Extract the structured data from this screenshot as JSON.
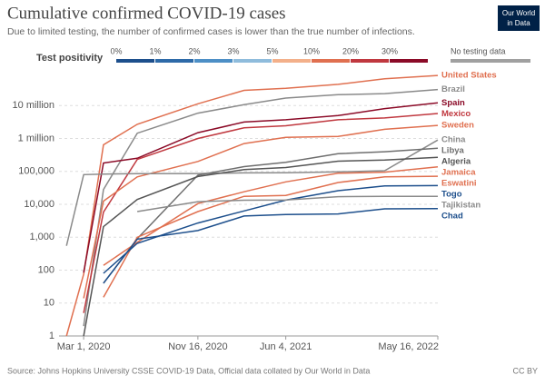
{
  "chart_data": {
    "type": "line",
    "title": "Cumulative confirmed COVID-19 cases",
    "subtitle": "Due to limited testing, the number of confirmed cases is lower than the true number of infections.",
    "logo": [
      "Our World",
      "in Data"
    ],
    "source": "Source: Johns Hopkins University CSSE COVID-19 Data, Official data collated by Our World in Data",
    "license": "CC BY",
    "legend": {
      "title": "Test positivity",
      "labels": [
        "0%",
        "1%",
        "2%",
        "3%",
        "5%",
        "10%",
        "20%",
        "30%"
      ],
      "colors": [
        "#1d4f8c",
        "#2d6aa8",
        "#4d8fc6",
        "#8fbcdc",
        "#f3b08a",
        "#e07050",
        "#c0383f",
        "#8b0a27"
      ],
      "no_data_label": "No testing data",
      "no_data_color": "#a0a0a0"
    },
    "log_scale": true,
    "grid": true,
    "x": [
      "2020-01-22",
      "2020-03-01",
      "2020-04-15",
      "2020-07-01",
      "2020-11-16",
      "2021-03-01",
      "2021-06-04",
      "2021-10-01",
      "2022-01-15",
      "2022-05-16"
    ],
    "xlim": [
      "2020-01-05",
      "2022-05-16"
    ],
    "xticks": [
      {
        "value": "2020-03-01",
        "label": "Mar 1, 2020"
      },
      {
        "value": "2020-11-16",
        "label": "Nov 16, 2020"
      },
      {
        "value": "2021-06-04",
        "label": "Jun 4, 2021"
      },
      {
        "value": "2022-05-16",
        "label": "May 16, 2022"
      }
    ],
    "ylim": [
      1,
      100000000
    ],
    "yticks": [
      1,
      10,
      100,
      {
        "value": 1000,
        "label": "1,000"
      },
      {
        "value": 10000,
        "label": "10,000"
      },
      {
        "value": 100000,
        "label": "100,000"
      },
      {
        "value": 1000000,
        "label": "1 million"
      },
      {
        "value": 10000000,
        "label": "10 million"
      }
    ],
    "series": [
      {
        "name": "United States",
        "color": "#e07050",
        "values": [
          1,
          75,
          640000,
          2700000,
          11300000,
          29000000,
          33300000,
          44000000,
          65000000,
          82000000
        ]
      },
      {
        "name": "Brazil",
        "color": "#8a8a8a",
        "values": [
          null,
          2,
          28000,
          1450000,
          5900000,
          10600000,
          16900000,
          21400000,
          23000000,
          30700000
        ]
      },
      {
        "name": "Spain",
        "color": "#8b0a27",
        "values": [
          null,
          84,
          180000,
          250000,
          1500000,
          3150000,
          3700000,
          4970000,
          8100000,
          12100000
        ]
      },
      {
        "name": "Mexico",
        "color": "#c0383f",
        "values": [
          null,
          5,
          5800,
          230000,
          1000000,
          2100000,
          2430000,
          3700000,
          4200000,
          5750000
        ]
      },
      {
        "name": "Sweden",
        "color": "#e07050",
        "values": [
          null,
          14,
          12500,
          68000,
          200000,
          700000,
          1080000,
          1150000,
          1900000,
          2500000
        ]
      },
      {
        "name": "China",
        "color": "#8a8a8a",
        "values": [
          548,
          80000,
          83000,
          84800,
          86400,
          89900,
          91300,
          96400,
          105000,
          900000
        ]
      },
      {
        "name": "Libya",
        "color": "#6e6e6e",
        "values": [
          null,
          null,
          40,
          900,
          77000,
          140000,
          188000,
          345000,
          395000,
          502000
        ]
      },
      {
        "name": "Algeria",
        "color": "#555555",
        "values": [
          null,
          1,
          2100,
          14000,
          70000,
          113000,
          131000,
          204000,
          220000,
          266000
        ]
      },
      {
        "name": "Jamaica",
        "color": "#e07050",
        "values": [
          null,
          null,
          140,
          700,
          10500,
          24000,
          48000,
          88000,
          95000,
          138000
        ]
      },
      {
        "name": "Eswatini",
        "color": "#e07050",
        "values": [
          null,
          null,
          15,
          1000,
          6000,
          17500,
          18600,
          46000,
          68000,
          71000
        ]
      },
      {
        "name": "Togo",
        "color": "#1d4f8c",
        "values": [
          null,
          null,
          80,
          650,
          2700,
          6300,
          13400,
          26000,
          36000,
          37000
        ]
      },
      {
        "name": "Tajikistan",
        "color": "#8a8a8a",
        "values": [
          null,
          null,
          null,
          6000,
          12000,
          13300,
          13500,
          17000,
          17400,
          17400
        ]
      },
      {
        "name": "Chad",
        "color": "#1d4f8c",
        "values": [
          null,
          null,
          40,
          870,
          1600,
          4400,
          4900,
          5100,
          7300,
          7400
        ]
      }
    ]
  }
}
